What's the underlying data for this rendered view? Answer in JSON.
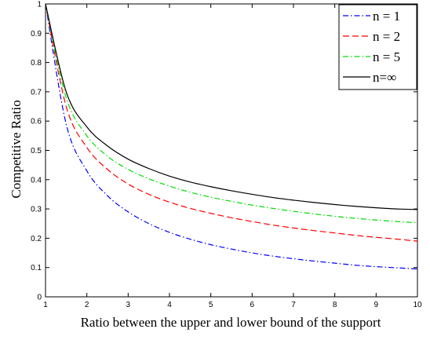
{
  "chart_data": {
    "type": "line",
    "xlabel": "Ratio between the upper and lower bound of the support",
    "ylabel": "Competitive Ratio",
    "xlim": [
      1,
      10
    ],
    "ylim": [
      0,
      1
    ],
    "x_ticks": [
      "1",
      "2",
      "3",
      "4",
      "5",
      "6",
      "7",
      "8",
      "9",
      "10"
    ],
    "y_ticks": [
      "0",
      "0.1",
      "0.2",
      "0.3",
      "0.4",
      "0.5",
      "0.6",
      "0.7",
      "0.8",
      "0.9",
      "1"
    ],
    "grid": false,
    "legend_position": "top-right",
    "x": [
      1,
      1.5,
      2,
      2.5,
      3,
      3.5,
      4,
      4.5,
      5,
      5.5,
      6,
      6.5,
      7,
      7.5,
      8,
      8.5,
      9,
      9.5,
      10
    ],
    "series": [
      {
        "name": "n = 1",
        "color": "#0000ff",
        "dash": "dashdot",
        "values": [
          1.0,
          0.59,
          0.43,
          0.345,
          0.29,
          0.25,
          0.22,
          0.197,
          0.178,
          0.163,
          0.15,
          0.139,
          0.13,
          0.122,
          0.115,
          0.108,
          0.103,
          0.099,
          0.095
        ]
      },
      {
        "name": "n = 2",
        "color": "#ff0000",
        "dash": "dashed",
        "values": [
          1.0,
          0.65,
          0.51,
          0.435,
          0.385,
          0.35,
          0.323,
          0.302,
          0.285,
          0.27,
          0.257,
          0.245,
          0.235,
          0.226,
          0.218,
          0.21,
          0.203,
          0.197,
          0.19
        ]
      },
      {
        "name": "n = 5",
        "color": "#00dd00",
        "dash": "dashdot",
        "values": [
          1.0,
          0.68,
          0.55,
          0.48,
          0.435,
          0.403,
          0.378,
          0.357,
          0.34,
          0.326,
          0.313,
          0.302,
          0.292,
          0.283,
          0.275,
          0.268,
          0.262,
          0.257,
          0.253
        ]
      },
      {
        "name": "n=∞",
        "color": "#000000",
        "dash": "solid",
        "values": [
          1.0,
          0.7,
          0.58,
          0.515,
          0.47,
          0.438,
          0.412,
          0.392,
          0.376,
          0.362,
          0.35,
          0.339,
          0.33,
          0.322,
          0.315,
          0.309,
          0.304,
          0.3,
          0.298
        ]
      }
    ]
  }
}
